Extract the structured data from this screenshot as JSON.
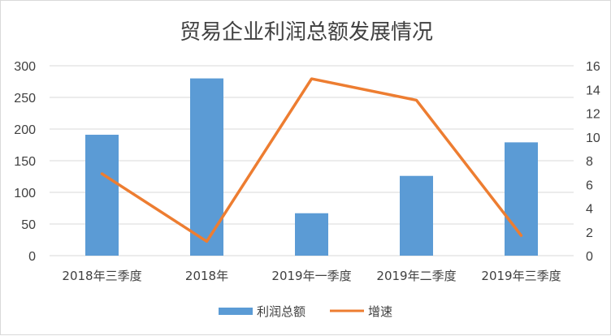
{
  "chart_data": {
    "type": "bar+line",
    "title": "贸易企业利润总额发展情况",
    "categories": [
      "2018年三季度",
      "2018年",
      "2019年一季度",
      "2019年二季度",
      "2019年三季度"
    ],
    "series": [
      {
        "name": "利润总额",
        "type": "bar",
        "axis": "left",
        "color": "#5B9BD5",
        "values": [
          191,
          280,
          67,
          126,
          179
        ]
      },
      {
        "name": "增速",
        "type": "line",
        "axis": "right",
        "color": "#ED7D31",
        "values": [
          6.9,
          1.2,
          14.9,
          13.1,
          1.7
        ]
      }
    ],
    "y_left": {
      "min": 0,
      "max": 300,
      "ticks": [
        "0",
        "50",
        "100",
        "150",
        "200",
        "250",
        "300"
      ]
    },
    "y_right": {
      "min": 0,
      "max": 16,
      "ticks": [
        "0",
        "2",
        "4",
        "6",
        "8",
        "10",
        "12",
        "14",
        "16"
      ]
    },
    "grid": true,
    "legend_position": "bottom"
  }
}
